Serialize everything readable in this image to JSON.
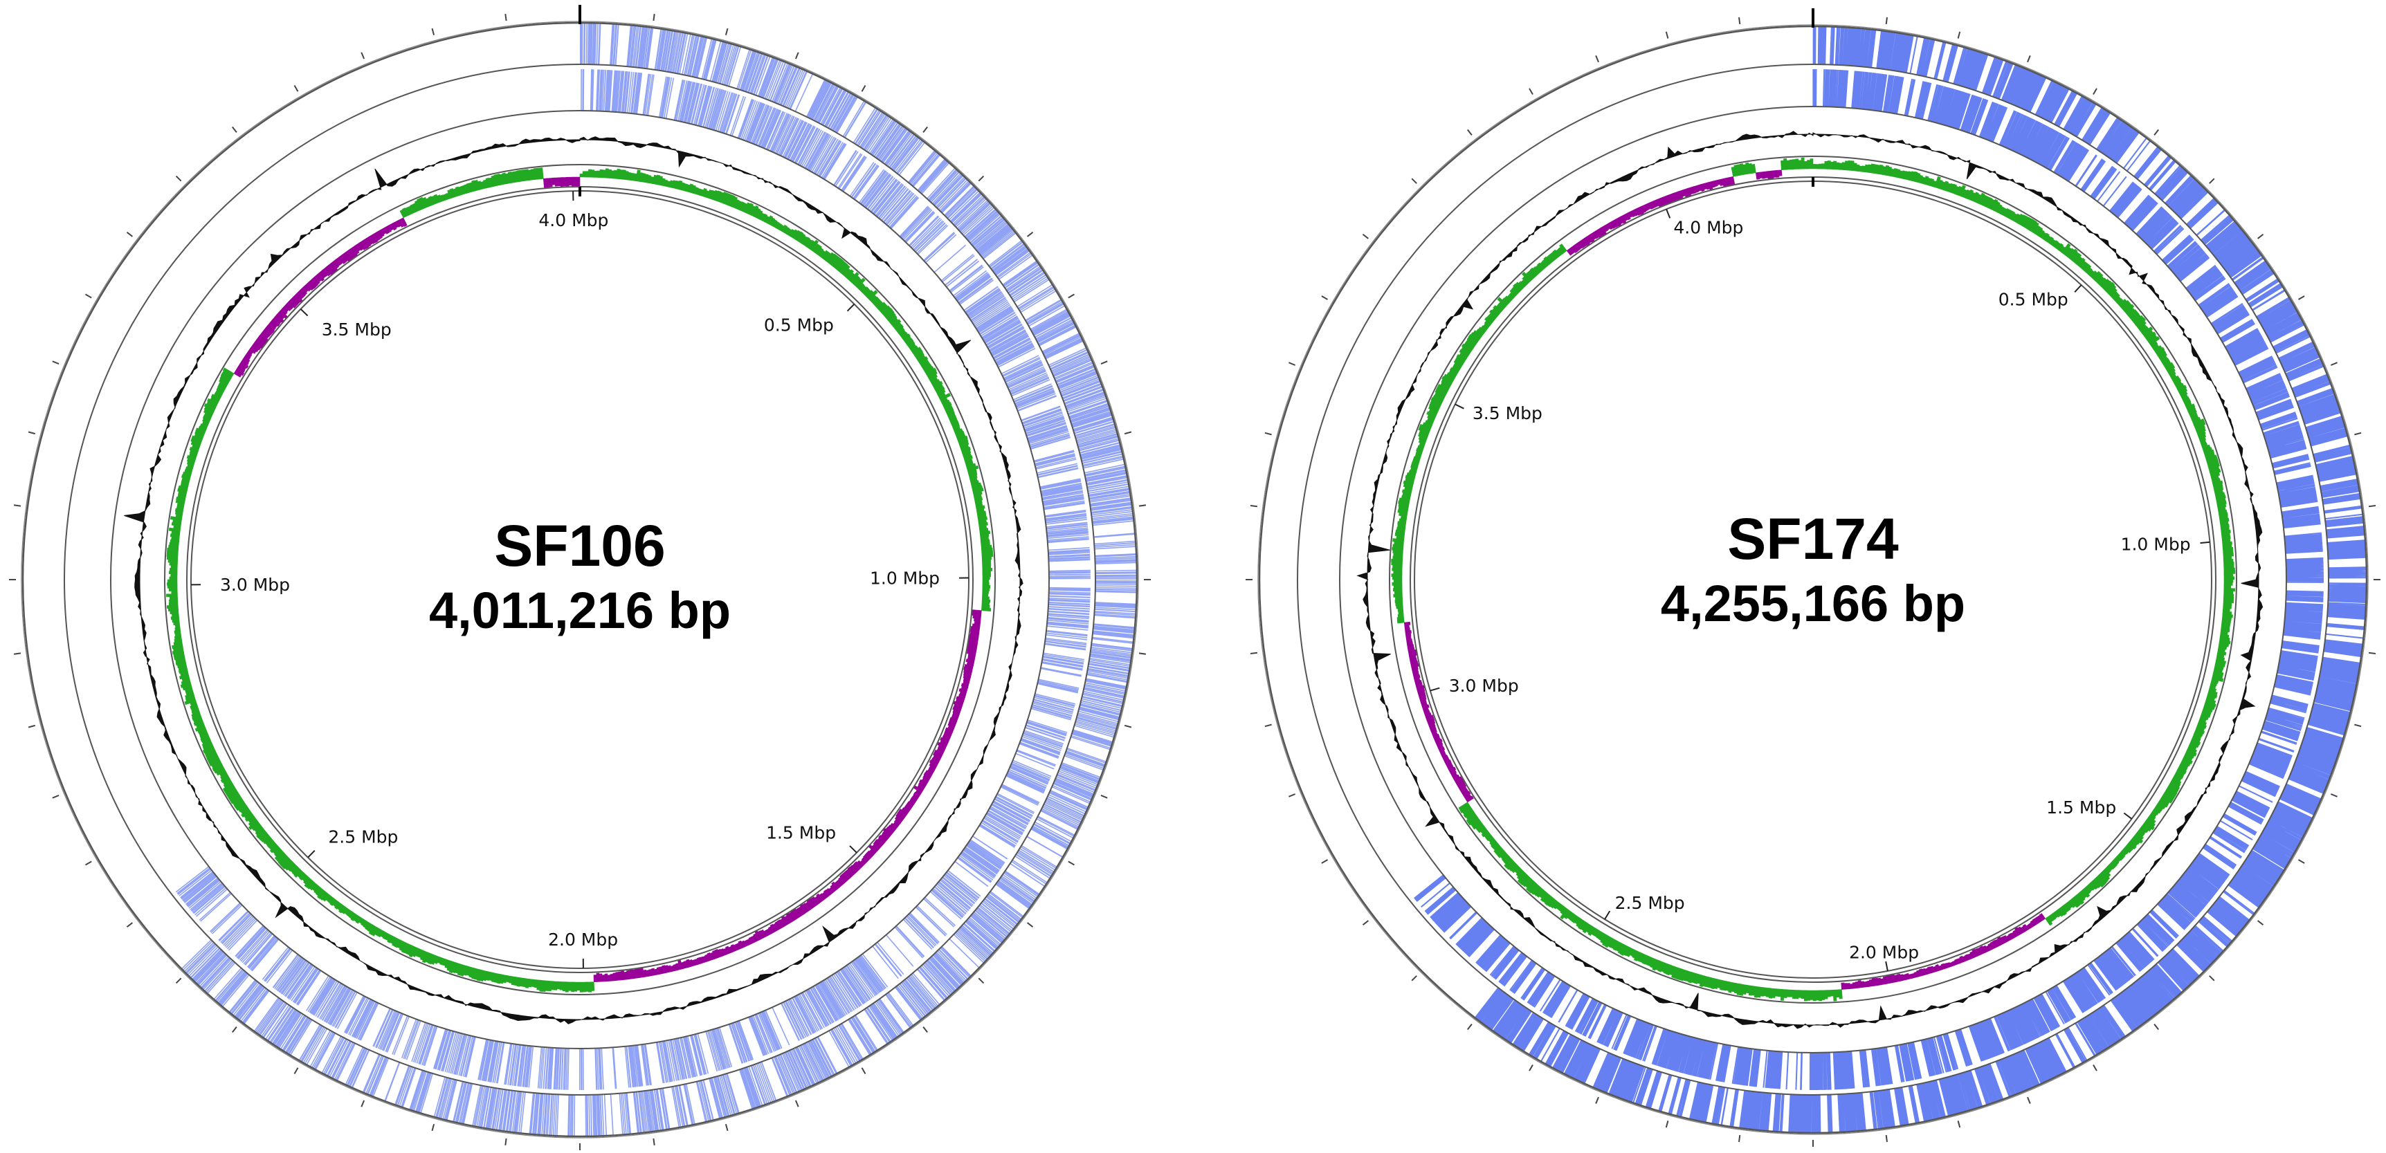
{
  "figure": {
    "genomes": [
      {
        "name": "SF106",
        "length_label": "4,011,216 bp",
        "length_bp": 4011216,
        "tick_labels": [
          {
            "mbp": 0.5,
            "label": "0.5 Mbp"
          },
          {
            "mbp": 1.0,
            "label": "1.0 Mbp"
          },
          {
            "mbp": 1.5,
            "label": "1.5 Mbp"
          },
          {
            "mbp": 2.0,
            "label": "2.0 Mbp"
          },
          {
            "mbp": 2.5,
            "label": "2.5 Mbp"
          },
          {
            "mbp": 3.0,
            "label": "3.0 Mbp"
          },
          {
            "mbp": 3.5,
            "label": "3.5 Mbp"
          },
          {
            "mbp": 4.0,
            "label": "4.0 Mbp"
          }
        ],
        "gc_skew_negative_regions_mbp": [
          [
            1.05,
            1.98
          ],
          [
            3.35,
            3.72
          ],
          [
            3.95,
            4.011216
          ]
        ],
        "seed": 106
      },
      {
        "name": "SF174",
        "length_label": "4,255,166 bp",
        "length_bp": 4255166,
        "tick_labels": [
          {
            "mbp": 0.5,
            "label": "0.5 Mbp"
          },
          {
            "mbp": 1.0,
            "label": "1.0 Mbp"
          },
          {
            "mbp": 1.5,
            "label": "1.5 Mbp"
          },
          {
            "mbp": 2.0,
            "label": "2.0 Mbp"
          },
          {
            "mbp": 2.5,
            "label": "2.5 Mbp"
          },
          {
            "mbp": 3.0,
            "label": "3.0 Mbp"
          },
          {
            "mbp": 3.5,
            "label": "3.5 Mbp"
          },
          {
            "mbp": 4.0,
            "label": "4.0 Mbp"
          }
        ],
        "gc_skew_negative_regions_mbp": [
          [
            1.72,
            2.08
          ],
          [
            2.8,
            3.12
          ],
          [
            3.82,
            4.12
          ],
          [
            4.16,
            4.2
          ]
        ],
        "seed": 174
      }
    ],
    "tracks": {
      "outer_cds_forward_color": "#3355ee",
      "inner_cds_reverse_color": "#3355ee",
      "gc_content_color": "#111111",
      "gc_skew_positive_color": "#22aa22",
      "gc_skew_negative_color": "#990099",
      "ring_line_color": "#555555"
    }
  }
}
